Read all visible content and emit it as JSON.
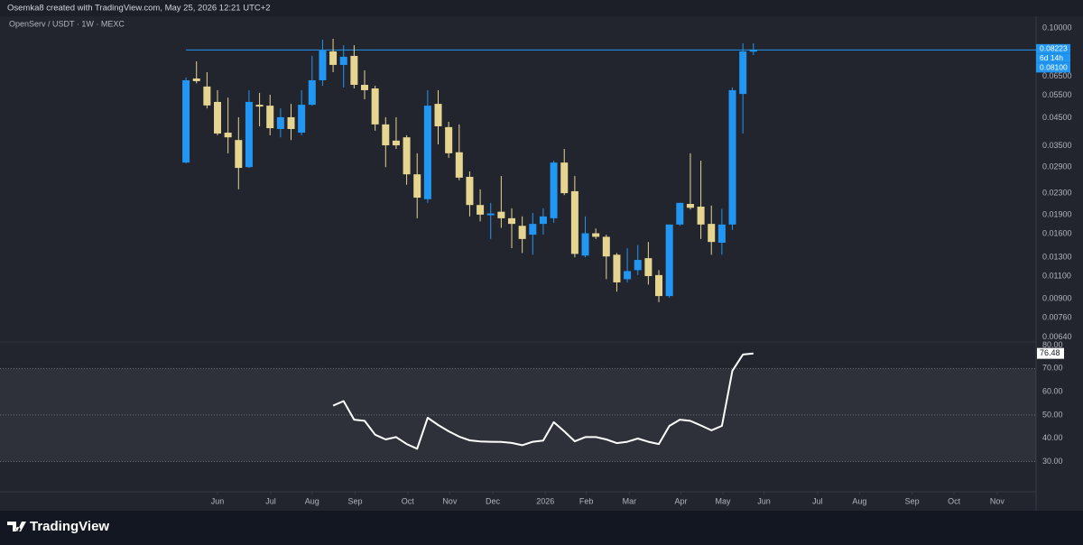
{
  "header": "Osemka8 created with TradingView.com, May 25, 2026 12:21 UTC+2",
  "footer": "TradingView",
  "chart_data": [
    {
      "type": "candlestick",
      "title": "OpenServ / USDT · 1W · MEXC",
      "log_scale": true,
      "grid": false,
      "up_color": "#2196f3",
      "down_color": "#e6d590",
      "xlim": [
        -17.7,
        80.9
      ],
      "xticks": [
        {
          "value": 3.0,
          "label": "Jun"
        },
        {
          "value": 8.07,
          "label": "Jul"
        },
        {
          "value": 12.0,
          "label": "Aug"
        },
        {
          "value": 16.1,
          "label": "Sep"
        },
        {
          "value": 21.1,
          "label": "Oct"
        },
        {
          "value": 25.1,
          "label": "Nov"
        },
        {
          "value": 29.2,
          "label": "Dec"
        },
        {
          "value": 34.2,
          "label": "2026"
        },
        {
          "value": 38.1,
          "label": "Feb"
        },
        {
          "value": 42.2,
          "label": "Mar"
        },
        {
          "value": 47.1,
          "label": "Apr"
        },
        {
          "value": 51.1,
          "label": "May"
        },
        {
          "value": 55.0,
          "label": "Jun"
        },
        {
          "value": 60.1,
          "label": "Jul"
        },
        {
          "value": 64.1,
          "label": "Aug"
        },
        {
          "value": 69.1,
          "label": "Sep"
        },
        {
          "value": 73.1,
          "label": "Oct"
        },
        {
          "value": 77.2,
          "label": "Nov"
        }
      ],
      "ylim": [
        0.00617,
        0.1137
      ],
      "yticks": [
        {
          "value": 0.1,
          "label": "0.10000"
        },
        {
          "value": 0.065,
          "label": "0.06500"
        },
        {
          "value": 0.055,
          "label": "0.05500"
        },
        {
          "value": 0.045,
          "label": "0.04500"
        },
        {
          "value": 0.035,
          "label": "0.03500"
        },
        {
          "value": 0.029,
          "label": "0.02900"
        },
        {
          "value": 0.023,
          "label": "0.02300"
        },
        {
          "value": 0.019,
          "label": "0.01900"
        },
        {
          "value": 0.016,
          "label": "0.01600"
        },
        {
          "value": 0.013,
          "label": "0.01300"
        },
        {
          "value": 0.011,
          "label": "0.01100"
        },
        {
          "value": 0.009,
          "label": "0.00900"
        },
        {
          "value": 0.0076,
          "label": "0.00760"
        },
        {
          "value": 0.0064,
          "label": "0.00640"
        }
      ],
      "open": [
        0.0302,
        0.0638,
        0.0594,
        0.0518,
        0.0394,
        0.0369,
        0.029,
        0.0505,
        0.0501,
        0.0407,
        0.0452,
        0.0394,
        0.0505,
        0.0628,
        0.0812,
        0.072,
        0.078,
        0.0603,
        0.0584,
        0.0424,
        0.0367,
        0.0378,
        0.0272,
        0.0218,
        0.0509,
        0.0414,
        0.0331,
        0.0266,
        0.0207,
        0.0189,
        0.0195,
        0.0184,
        0.0172,
        0.0159,
        0.0175,
        0.0184,
        0.0302,
        0.0234,
        0.0132,
        0.0161,
        0.0156,
        0.0133,
        0.0107,
        0.0116,
        0.0129,
        0.0111,
        0.00921,
        0.0174,
        0.0209,
        0.0204,
        0.0175,
        0.0148,
        0.0174,
        0.0556,
        0.081
      ],
      "high": [
        0.0643,
        0.0743,
        0.0675,
        0.0575,
        0.0538,
        0.0452,
        0.0575,
        0.0561,
        0.0552,
        0.0489,
        0.0509,
        0.0575,
        0.078,
        0.0901,
        0.0908,
        0.0858,
        0.0858,
        0.0686,
        0.0598,
        0.0452,
        0.0452,
        0.0385,
        0.0328,
        0.0575,
        0.0575,
        0.0434,
        0.0424,
        0.0279,
        0.0238,
        0.0211,
        0.0268,
        0.0201,
        0.0187,
        0.0193,
        0.0201,
        0.0307,
        0.0341,
        0.0268,
        0.0187,
        0.0168,
        0.0159,
        0.0135,
        0.0141,
        0.0145,
        0.0149,
        0.0116,
        0.0174,
        0.0211,
        0.0328,
        0.0307,
        0.0206,
        0.02,
        0.0589,
        0.0873,
        0.0873
      ],
      "low": [
        0.03,
        0.0611,
        0.0489,
        0.0385,
        0.0328,
        0.0238,
        0.0288,
        0.0417,
        0.0385,
        0.0378,
        0.0369,
        0.0385,
        0.0501,
        0.0598,
        0.0675,
        0.0589,
        0.0584,
        0.053,
        0.0401,
        0.029,
        0.0341,
        0.0248,
        0.0184,
        0.0211,
        0.0355,
        0.0315,
        0.0258,
        0.0187,
        0.0179,
        0.0153,
        0.0169,
        0.0141,
        0.0135,
        0.0133,
        0.0159,
        0.0177,
        0.0226,
        0.013,
        0.013,
        0.0153,
        0.0107,
        0.00958,
        0.0104,
        0.0111,
        0.0102,
        0.00872,
        0.00907,
        0.0172,
        0.0199,
        0.0153,
        0.0133,
        0.0133,
        0.0166,
        0.0391,
        0.0786
      ],
      "close": [
        0.0628,
        0.0623,
        0.0502,
        0.0391,
        0.0378,
        0.0288,
        0.0518,
        0.0497,
        0.041,
        0.0452,
        0.0407,
        0.0505,
        0.0628,
        0.0818,
        0.072,
        0.0774,
        0.0603,
        0.0575,
        0.0424,
        0.0352,
        0.0352,
        0.0272,
        0.0221,
        0.0501,
        0.0417,
        0.0328,
        0.0264,
        0.0207,
        0.019,
        0.0192,
        0.0184,
        0.0175,
        0.0153,
        0.0175,
        0.0187,
        0.0302,
        0.023,
        0.0134,
        0.0161,
        0.0156,
        0.0131,
        0.0104,
        0.0115,
        0.0127,
        0.011,
        0.00921,
        0.0174,
        0.0211,
        0.0202,
        0.0174,
        0.0149,
        0.0174,
        0.0575,
        0.0812,
        0.08223
      ],
      "price_labels": [
        {
          "value": 0.08223,
          "label": "0.08223"
        },
        {
          "value": 0.081,
          "label": "0.08100"
        }
      ],
      "countdown": "6d 14h"
    },
    {
      "type": "line",
      "color": "#ffffff",
      "ylim": [
        17,
        81
      ],
      "yticks": [
        {
          "value": 80,
          "label": "80.00"
        },
        {
          "value": 70,
          "label": "70.00"
        },
        {
          "value": 60,
          "label": "60.00"
        },
        {
          "value": 50,
          "label": "50.00"
        },
        {
          "value": 40,
          "label": "40.00"
        },
        {
          "value": 30,
          "label": "30.00"
        }
      ],
      "band": [
        30,
        70
      ],
      "midline": 50,
      "values": [
        null,
        null,
        null,
        null,
        null,
        null,
        null,
        null,
        null,
        null,
        null,
        null,
        null,
        null,
        54,
        56,
        48,
        47.5,
        41.5,
        39.5,
        40.5,
        37.5,
        35.5,
        48.8,
        45.7,
        43,
        40.7,
        39.1,
        38.6,
        38.5,
        38.4,
        38,
        37,
        38.5,
        39,
        46.9,
        43,
        38.7,
        40.5,
        40.5,
        39.5,
        37.9,
        38.5,
        39.9,
        38.5,
        37.5,
        45.3,
        48,
        47.5,
        45.5,
        43.4,
        45.3,
        69,
        76,
        76.48
      ]
    }
  ]
}
